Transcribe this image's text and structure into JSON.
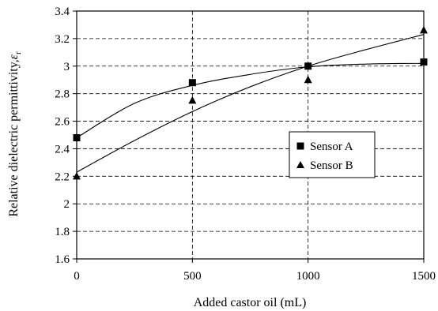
{
  "chart_data": {
    "type": "scatter",
    "xlabel": "Added castor oil (mL)",
    "ylabel": "Relative dielectric permittivity,",
    "ylabel_symbol": "ε",
    "ylabel_subscript": "r",
    "xlim": [
      0,
      1500
    ],
    "ylim": [
      1.6,
      3.4
    ],
    "x_ticks": [
      0,
      500,
      1000,
      1500
    ],
    "x_tick_labels": [
      "0",
      "500",
      "1000",
      "1500"
    ],
    "y_ticks": [
      1.6,
      1.8,
      2,
      2.2,
      2.4,
      2.6,
      2.8,
      3,
      3.2,
      3.4
    ],
    "y_tick_labels": [
      "1.6",
      "1.8",
      "2",
      "2.2",
      "2.4",
      "2.6",
      "2.8",
      "3",
      "3.2",
      "3.4"
    ],
    "grid": true,
    "legend_position": "center-right",
    "series": [
      {
        "name": "Sensor A",
        "marker": "square",
        "x": [
          0,
          500,
          1000,
          1500
        ],
        "y": [
          2.48,
          2.88,
          3.0,
          3.03
        ],
        "trend": [
          [
            0,
            2.48
          ],
          [
            250,
            2.73
          ],
          [
            500,
            2.86
          ],
          [
            750,
            2.94
          ],
          [
            1000,
            2.995
          ],
          [
            1250,
            3.015
          ],
          [
            1500,
            3.02
          ]
        ]
      },
      {
        "name": "Sensor B",
        "marker": "triangle",
        "x": [
          0,
          500,
          1000,
          1500
        ],
        "y": [
          2.2,
          2.75,
          2.9,
          3.26
        ],
        "trend": [
          [
            0,
            2.23
          ],
          [
            250,
            2.46
          ],
          [
            500,
            2.67
          ],
          [
            750,
            2.85
          ],
          [
            1000,
            3.0
          ],
          [
            1250,
            3.12
          ],
          [
            1500,
            3.23
          ]
        ]
      }
    ]
  }
}
